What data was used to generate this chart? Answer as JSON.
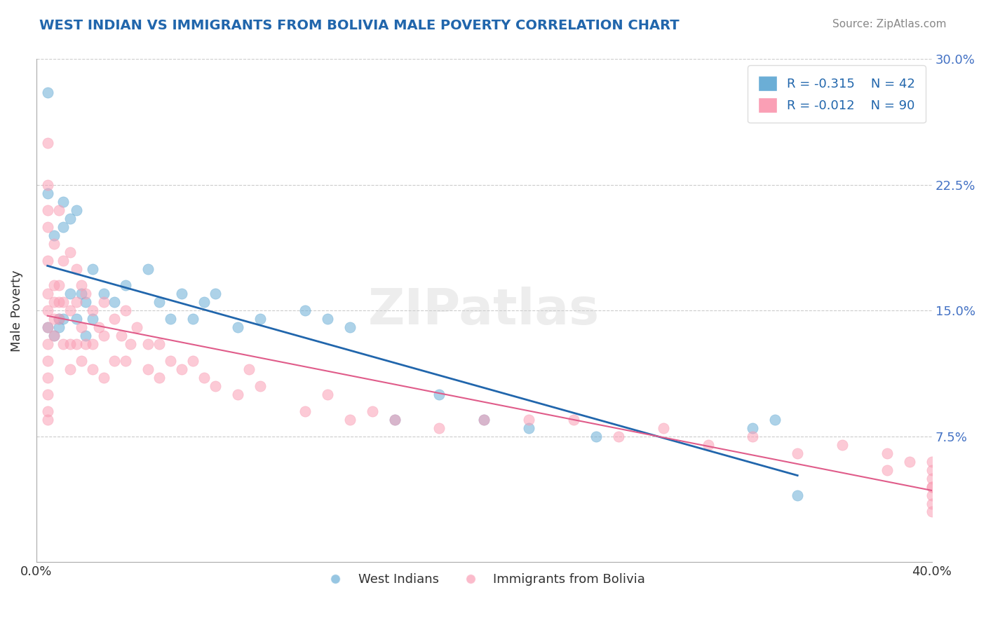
{
  "title": "WEST INDIAN VS IMMIGRANTS FROM BOLIVIA MALE POVERTY CORRELATION CHART",
  "source_text": "Source: ZipAtlas.com",
  "xlabel": "",
  "ylabel": "Male Poverty",
  "xlim": [
    0.0,
    0.4
  ],
  "ylim": [
    0.0,
    0.3
  ],
  "xtick_labels": [
    "0.0%",
    "40.0%"
  ],
  "ytick_labels": [
    "7.5%",
    "15.0%",
    "22.5%",
    "30.0%"
  ],
  "ytick_values": [
    0.075,
    0.15,
    0.225,
    0.3
  ],
  "grid_color": "#cccccc",
  "background_color": "#ffffff",
  "watermark": "ZIPatlas",
  "legend_R1": "R = -0.315",
  "legend_N1": "N = 42",
  "legend_R2": "R = -0.012",
  "legend_N2": "N = 90",
  "blue_color": "#6baed6",
  "pink_color": "#fa9fb5",
  "blue_line_color": "#2166ac",
  "pink_line_color": "#e05c8a",
  "west_indians_x": [
    0.01,
    0.005,
    0.005,
    0.012,
    0.012,
    0.008,
    0.015,
    0.018,
    0.02,
    0.022,
    0.025,
    0.03,
    0.025,
    0.022,
    0.018,
    0.015,
    0.012,
    0.01,
    0.008,
    0.005,
    0.035,
    0.04,
    0.05,
    0.055,
    0.06,
    0.065,
    0.07,
    0.075,
    0.08,
    0.09,
    0.1,
    0.12,
    0.13,
    0.14,
    0.16,
    0.18,
    0.2,
    0.22,
    0.25,
    0.32,
    0.33,
    0.34
  ],
  "west_indians_y": [
    0.145,
    0.28,
    0.22,
    0.215,
    0.2,
    0.195,
    0.205,
    0.21,
    0.16,
    0.155,
    0.175,
    0.16,
    0.145,
    0.135,
    0.145,
    0.16,
    0.145,
    0.14,
    0.135,
    0.14,
    0.155,
    0.165,
    0.175,
    0.155,
    0.145,
    0.16,
    0.145,
    0.155,
    0.16,
    0.14,
    0.145,
    0.15,
    0.145,
    0.14,
    0.085,
    0.1,
    0.085,
    0.08,
    0.075,
    0.08,
    0.085,
    0.04
  ],
  "bolivia_x": [
    0.005,
    0.005,
    0.005,
    0.005,
    0.005,
    0.005,
    0.005,
    0.005,
    0.005,
    0.005,
    0.005,
    0.005,
    0.005,
    0.005,
    0.008,
    0.008,
    0.008,
    0.008,
    0.008,
    0.01,
    0.01,
    0.01,
    0.01,
    0.012,
    0.012,
    0.012,
    0.015,
    0.015,
    0.015,
    0.015,
    0.018,
    0.018,
    0.018,
    0.02,
    0.02,
    0.02,
    0.022,
    0.022,
    0.025,
    0.025,
    0.025,
    0.028,
    0.03,
    0.03,
    0.03,
    0.035,
    0.035,
    0.038,
    0.04,
    0.04,
    0.042,
    0.045,
    0.05,
    0.05,
    0.055,
    0.055,
    0.06,
    0.065,
    0.07,
    0.075,
    0.08,
    0.09,
    0.095,
    0.1,
    0.12,
    0.13,
    0.14,
    0.15,
    0.16,
    0.18,
    0.2,
    0.22,
    0.24,
    0.26,
    0.28,
    0.3,
    0.32,
    0.34,
    0.36,
    0.38,
    0.38,
    0.39,
    0.4,
    0.4,
    0.4,
    0.4,
    0.4,
    0.4,
    0.4,
    0.4
  ],
  "bolivia_y": [
    0.25,
    0.225,
    0.21,
    0.2,
    0.18,
    0.16,
    0.15,
    0.14,
    0.13,
    0.12,
    0.11,
    0.1,
    0.09,
    0.085,
    0.19,
    0.165,
    0.155,
    0.145,
    0.135,
    0.21,
    0.165,
    0.155,
    0.145,
    0.18,
    0.155,
    0.13,
    0.185,
    0.15,
    0.13,
    0.115,
    0.175,
    0.155,
    0.13,
    0.165,
    0.14,
    0.12,
    0.16,
    0.13,
    0.15,
    0.13,
    0.115,
    0.14,
    0.155,
    0.135,
    0.11,
    0.145,
    0.12,
    0.135,
    0.15,
    0.12,
    0.13,
    0.14,
    0.13,
    0.115,
    0.13,
    0.11,
    0.12,
    0.115,
    0.12,
    0.11,
    0.105,
    0.1,
    0.115,
    0.105,
    0.09,
    0.1,
    0.085,
    0.09,
    0.085,
    0.08,
    0.085,
    0.085,
    0.085,
    0.075,
    0.08,
    0.07,
    0.075,
    0.065,
    0.07,
    0.065,
    0.055,
    0.06,
    0.06,
    0.055,
    0.05,
    0.045,
    0.045,
    0.04,
    0.035,
    0.03
  ]
}
